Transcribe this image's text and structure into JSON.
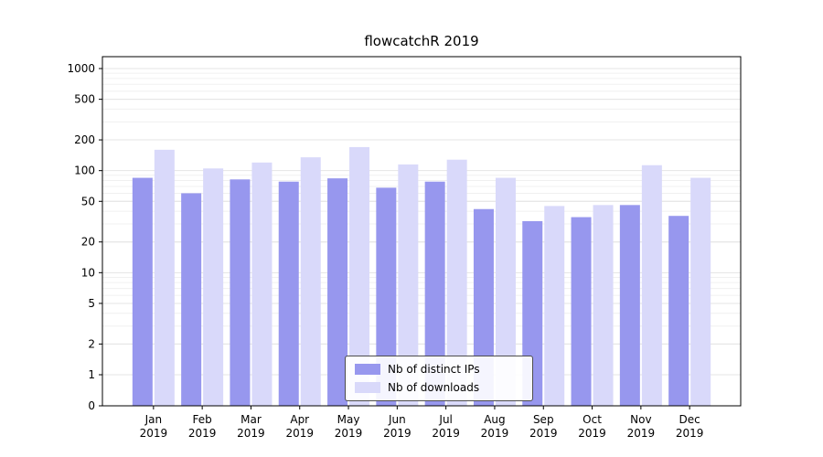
{
  "chart_data": {
    "type": "bar",
    "title": "flowcatchR 2019",
    "categories": [
      "Jan",
      "Feb",
      "Mar",
      "Apr",
      "May",
      "Jun",
      "Jul",
      "Aug",
      "Sep",
      "Oct",
      "Nov",
      "Dec"
    ],
    "year_label": "2019",
    "series": [
      {
        "name": "Nb of distinct IPs",
        "color": "#9797ee",
        "values": [
          85,
          60,
          82,
          78,
          84,
          68,
          78,
          42,
          32,
          35,
          46,
          36
        ]
      },
      {
        "name": "Nb of downloads",
        "color": "#d9d9fa",
        "values": [
          160,
          105,
          120,
          135,
          170,
          115,
          128,
          85,
          45,
          46,
          113,
          85
        ]
      }
    ],
    "y_ticks": [
      0,
      1,
      2,
      5,
      10,
      20,
      50,
      100,
      200,
      500,
      1000
    ],
    "y_scale": "log",
    "ylim": [
      0,
      1000
    ],
    "grid": true,
    "legend_position": "lower center",
    "axis_color": "#000000",
    "grid_major_color": "#e4e4e4",
    "grid_minor_color": "#f0f0f0"
  }
}
